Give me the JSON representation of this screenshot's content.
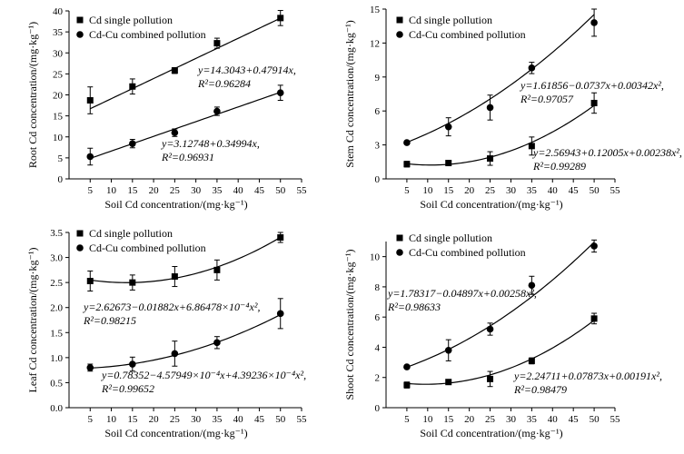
{
  "chart_data": [
    {
      "type": "scatter",
      "panel": "top-left",
      "xlabel": "Soil Cd concentration/(mg·kg⁻¹)",
      "ylabel": "Root Cd concentration/(mg·kg⁻¹)",
      "xlim": [
        0,
        55
      ],
      "ylim": [
        0,
        40
      ],
      "xticks": [
        5,
        10,
        15,
        20,
        25,
        30,
        35,
        40,
        45,
        50,
        55
      ],
      "yticks": [
        0,
        5,
        10,
        15,
        20,
        25,
        30,
        35,
        40
      ],
      "legend_position": "top-left",
      "series": [
        {
          "name": "Cd single pollution",
          "marker": "square",
          "x": [
            5,
            15,
            25,
            35,
            50
          ],
          "y": [
            18.7,
            22.0,
            25.8,
            32.3,
            38.3
          ],
          "err": [
            3.2,
            1.8,
            0.7,
            1.2,
            1.8
          ],
          "fit": [
            14.3043,
            0.47914,
            0
          ],
          "eq_line1": "y=14.3043+0.47914x,",
          "eq_line2": "R²=0.96284"
        },
        {
          "name": "Cd-Cu combined pollution",
          "marker": "circle",
          "x": [
            5,
            15,
            25,
            35,
            50
          ],
          "y": [
            5.3,
            8.4,
            11.0,
            16.1,
            20.5
          ],
          "err": [
            2.0,
            1.0,
            0.9,
            1.0,
            1.8
          ],
          "fit": [
            3.12748,
            0.34994,
            0
          ],
          "eq_line1": "y=3.12748+0.34994x,",
          "eq_line2": "R²=0.96931"
        }
      ]
    },
    {
      "type": "scatter",
      "panel": "top-right",
      "xlabel": "Soil Cd concentration/(mg·kg⁻¹)",
      "ylabel": "Stem Cd concentration/(mg·kg⁻¹)",
      "xlim": [
        0,
        55
      ],
      "ylim": [
        0,
        15
      ],
      "xticks": [
        5,
        10,
        15,
        20,
        25,
        30,
        35,
        40,
        45,
        50,
        55
      ],
      "yticks": [
        0,
        3,
        6,
        9,
        12,
        15
      ],
      "legend_position": "top-left",
      "series": [
        {
          "name": "Cd single pollution",
          "marker": "square",
          "x": [
            5,
            15,
            25,
            35,
            50
          ],
          "y": [
            1.3,
            1.4,
            1.8,
            2.9,
            6.7
          ],
          "err": [
            0.25,
            0.2,
            0.6,
            0.8,
            0.9
          ],
          "fit": [
            1.61856,
            -0.0737,
            0.00342
          ],
          "eq_line1": "y=1.61856−0.0737x+0.00342x²,",
          "eq_line2": "R²=0.97057"
        },
        {
          "name": "Cd-Cu combined pollution",
          "marker": "circle",
          "x": [
            5,
            15,
            25,
            35,
            50
          ],
          "y": [
            3.2,
            4.6,
            6.3,
            9.8,
            13.8
          ],
          "err": [
            0.15,
            0.8,
            1.1,
            0.5,
            1.2
          ],
          "fit": [
            2.56943,
            0.12005,
            0.00238
          ],
          "eq_line1": "y=2.56943+0.12005x+0.00238x²,",
          "eq_line2": "R²=0.99289"
        }
      ]
    },
    {
      "type": "scatter",
      "panel": "bottom-left",
      "xlabel": "Soil Cd concentration/(mg·kg⁻¹)",
      "ylabel": "Leaf Cd concentration/(mg·kg⁻¹)",
      "xlim": [
        0,
        55
      ],
      "ylim": [
        0,
        3.5
      ],
      "xticks": [
        5,
        10,
        15,
        20,
        25,
        30,
        35,
        40,
        45,
        50,
        55
      ],
      "yticks": [
        0,
        0.5,
        1.0,
        1.5,
        2.0,
        2.5,
        3.0,
        3.5
      ],
      "legend_position": "top-left",
      "series": [
        {
          "name": "Cd single pollution",
          "marker": "square",
          "x": [
            5,
            15,
            25,
            35,
            50
          ],
          "y": [
            2.53,
            2.5,
            2.62,
            2.75,
            3.4
          ],
          "err": [
            0.2,
            0.15,
            0.2,
            0.2,
            0.1
          ],
          "fit": [
            2.62673,
            -0.01882,
            0.000686478
          ],
          "eq_line1": "y=2.62673−0.01882x+6.86478×10⁻⁴x²,",
          "eq_line2": "R²=0.98215"
        },
        {
          "name": "Cd-Cu combined pollution",
          "marker": "circle",
          "x": [
            5,
            15,
            25,
            35,
            50
          ],
          "y": [
            0.8,
            0.87,
            1.08,
            1.3,
            1.88
          ],
          "err": [
            0.07,
            0.14,
            0.25,
            0.12,
            0.3
          ],
          "fit": [
            0.78352,
            -0.000457949,
            0.000439236
          ],
          "eq_line1": "y=0.78352−4.57949×10⁻⁴x+4.39236×10⁻⁴x²,",
          "eq_line2": "R²=0.99652"
        }
      ]
    },
    {
      "type": "scatter",
      "panel": "bottom-right",
      "xlabel": "Soil Cd concentration/(mg·kg⁻¹)",
      "ylabel": "Shoot Cd concentration/(mg·kg⁻¹)",
      "xlim": [
        0,
        55
      ],
      "ylim": [
        0,
        11
      ],
      "xticks": [
        5,
        10,
        15,
        20,
        25,
        30,
        35,
        40,
        45,
        50,
        55
      ],
      "yticks": [
        0,
        2,
        4,
        6,
        8,
        10
      ],
      "legend_position": "top-left",
      "series": [
        {
          "name": "Cd single pollution",
          "marker": "square",
          "x": [
            5,
            15,
            25,
            35,
            50
          ],
          "y": [
            1.5,
            1.7,
            1.9,
            3.1,
            5.9
          ],
          "err": [
            0.2,
            0.1,
            0.5,
            0.2,
            0.35
          ],
          "fit": [
            1.78317,
            -0.04897,
            0.00258
          ],
          "eq_line1": "y=1.78317−0.04897x+0.00258x²,",
          "eq_line2": "R²=0.98633"
        },
        {
          "name": "Cd-Cu combined pollution",
          "marker": "circle",
          "x": [
            5,
            15,
            25,
            35,
            50
          ],
          "y": [
            2.7,
            3.8,
            5.2,
            8.1,
            10.7
          ],
          "err": [
            0.1,
            0.7,
            0.4,
            0.6,
            0.4
          ],
          "fit": [
            2.24711,
            0.07873,
            0.00191
          ],
          "eq_line1": "y=2.24711+0.07873x+0.00191x²,",
          "eq_line2": "R²=0.98479"
        }
      ]
    }
  ]
}
